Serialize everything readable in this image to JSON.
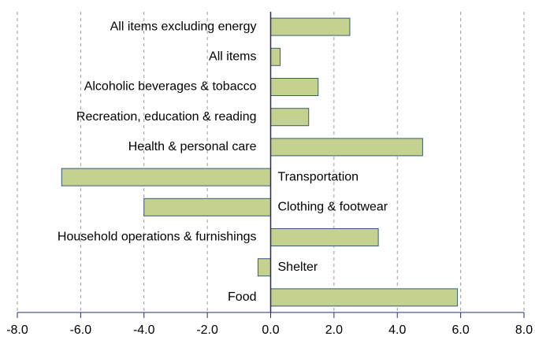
{
  "chart_data": {
    "type": "hbar",
    "categories": [
      "All items excluding energy",
      "All items",
      "Alcoholic beverages & tobacco",
      "Recreation, education & reading",
      "Health & personal care",
      "Transportation",
      "Clothing & footwear",
      "Household operations & furnishings",
      "Shelter",
      "Food"
    ],
    "values": [
      2.5,
      0.3,
      1.5,
      1.2,
      4.8,
      -6.6,
      -4.0,
      3.4,
      -0.4,
      5.9
    ],
    "color": "#c4d18f",
    "xlim": [
      -8,
      8
    ],
    "xticks": [
      {
        "value": -8,
        "label": "-8.0"
      },
      {
        "value": -6,
        "label": "-6.0"
      },
      {
        "value": -4,
        "label": "-4.0"
      },
      {
        "value": -2,
        "label": "-2.0"
      },
      {
        "value": 0,
        "label": "0.0"
      },
      {
        "value": 2,
        "label": "2.0"
      },
      {
        "value": 4,
        "label": "4.0"
      },
      {
        "value": 6,
        "label": "6.0"
      },
      {
        "value": 8,
        "label": "8.0"
      }
    ],
    "grid": true
  }
}
